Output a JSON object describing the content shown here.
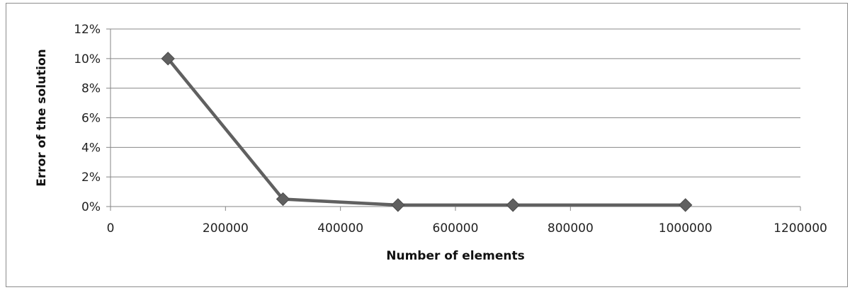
{
  "chart_data": {
    "type": "line",
    "xlabel": "Number of elements",
    "ylabel": "Error of the solution",
    "xlim": [
      0,
      1200000
    ],
    "ylim": [
      0,
      0.12
    ],
    "x_ticks": [
      "0",
      "200000",
      "400000",
      "600000",
      "800000",
      "1000000",
      "1200000"
    ],
    "y_ticks": [
      "0%",
      "2%",
      "4%",
      "6%",
      "8%",
      "10%",
      "12%"
    ],
    "grid": "horizontal",
    "legend": "none",
    "series": [
      {
        "color": "#606060",
        "marker": "diamond",
        "x": [
          100000,
          300000,
          500000,
          700000,
          1000000
        ],
        "y": [
          0.1,
          0.005,
          0.001,
          0.001,
          0.001
        ]
      }
    ]
  }
}
